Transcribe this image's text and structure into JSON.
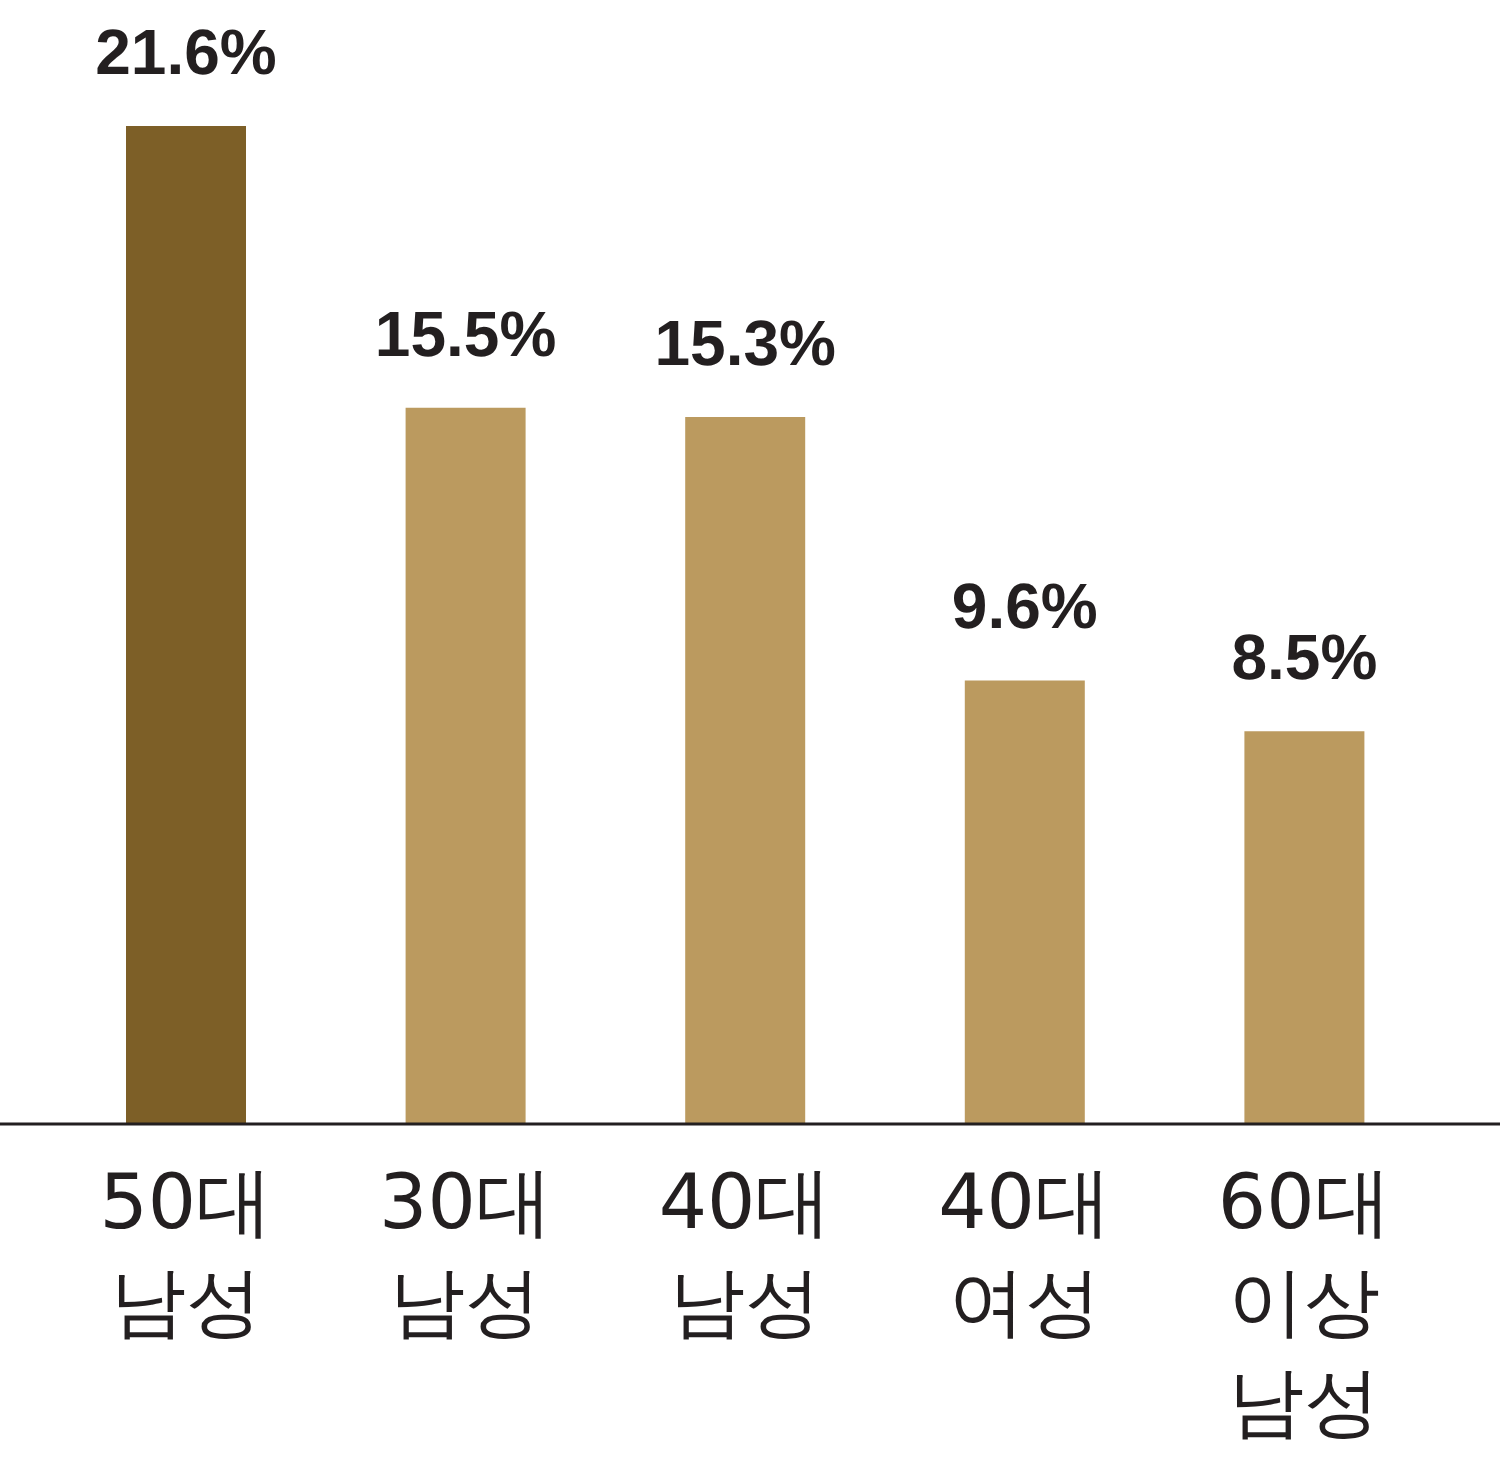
{
  "chart_data": {
    "type": "bar",
    "categories": [
      "50대 남성",
      "30대 남성",
      "40대 남성",
      "40대 여성",
      "60대 이상 남성"
    ],
    "values": [
      21.6,
      15.5,
      15.3,
      9.6,
      8.5
    ],
    "colors": [
      "#7d5f27",
      "#bb9a5f",
      "#bb9a5f",
      "#bb9a5f",
      "#bb9a5f"
    ],
    "value_labels": [
      "21.6%",
      "15.5%",
      "15.3%",
      "9.6%",
      "8.5%"
    ],
    "grid": false,
    "legend": false
  }
}
